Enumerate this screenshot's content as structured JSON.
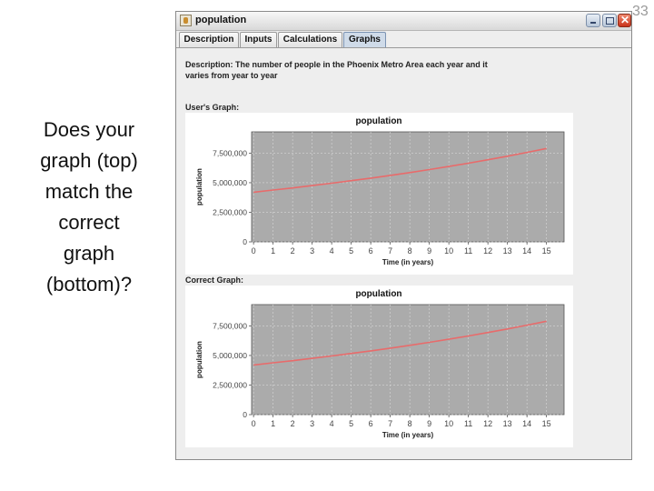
{
  "slide": {
    "number": "33",
    "question": [
      "Does your",
      "graph (top)",
      "match the",
      "correct",
      "graph",
      "(bottom)?"
    ]
  },
  "window": {
    "title": "population",
    "icon": "java-cup-icon",
    "controls": [
      "minimize-icon",
      "maximize-icon",
      "close-icon"
    ]
  },
  "tabs": [
    {
      "label": "Description",
      "active": false
    },
    {
      "label": "Inputs",
      "active": false
    },
    {
      "label": "Calculations",
      "active": false
    },
    {
      "label": "Graphs",
      "active": true
    }
  ],
  "description": "Description: The number of people in the Phoenix Metro Area each year and it varies from year to year",
  "user_graph_label": "User's Graph:",
  "correct_graph_label": "Correct Graph:",
  "colors": {
    "plot_bg": "#ababab",
    "line": "#e86b6b",
    "window_bg": "#eeeeee"
  },
  "chart_data": [
    {
      "type": "line",
      "title": "population",
      "xlabel": "Time (in years)",
      "ylabel": "population",
      "x": [
        0,
        1,
        2,
        3,
        4,
        5,
        6,
        7,
        8,
        9,
        10,
        11,
        12,
        13,
        14,
        15
      ],
      "xticks": [
        "0",
        "1",
        "2",
        "3",
        "4",
        "5",
        "6",
        "7",
        "8",
        "9",
        "10",
        "11",
        "12",
        "13",
        "14",
        "15"
      ],
      "yticks": [
        0,
        2500000,
        5000000,
        7500000
      ],
      "ytick_labels": [
        "0",
        "2,500,000",
        "5,000,000",
        "7,500,000"
      ],
      "ylim": [
        0,
        9300000
      ],
      "xlim": [
        -0.1,
        15.9
      ],
      "grid": true,
      "series": [
        {
          "values": [
            4200000,
            4380000,
            4560000,
            4760000,
            4960000,
            5170000,
            5390000,
            5620000,
            5860000,
            6110000,
            6370000,
            6650000,
            6940000,
            7240000,
            7560000,
            7890000
          ]
        }
      ]
    },
    {
      "type": "line",
      "title": "population",
      "xlabel": "Time (in years)",
      "ylabel": "population",
      "x": [
        0,
        1,
        2,
        3,
        4,
        5,
        6,
        7,
        8,
        9,
        10,
        11,
        12,
        13,
        14,
        15
      ],
      "xticks": [
        "0",
        "1",
        "2",
        "3",
        "4",
        "5",
        "6",
        "7",
        "8",
        "9",
        "10",
        "11",
        "12",
        "13",
        "14",
        "15"
      ],
      "yticks": [
        0,
        2500000,
        5000000,
        7500000
      ],
      "ytick_labels": [
        "0",
        "2,500,000",
        "5,000,000",
        "7,500,000"
      ],
      "ylim": [
        0,
        9300000
      ],
      "xlim": [
        -0.1,
        15.9
      ],
      "grid": true,
      "series": [
        {
          "values": [
            4200000,
            4380000,
            4560000,
            4760000,
            4960000,
            5170000,
            5390000,
            5620000,
            5860000,
            6110000,
            6370000,
            6650000,
            6940000,
            7240000,
            7560000,
            7890000
          ]
        }
      ]
    }
  ]
}
